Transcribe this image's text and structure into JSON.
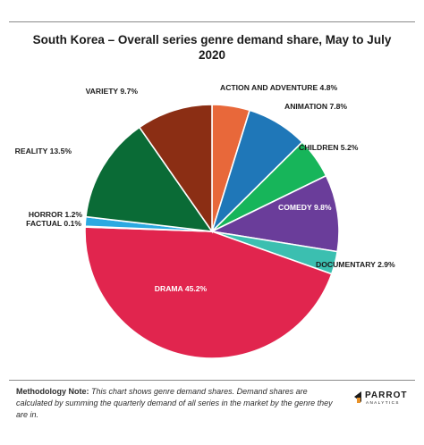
{
  "title": "South Korea – Overall series genre demand share, May to July 2020",
  "chart_data": {
    "type": "pie",
    "title": "South Korea – Overall series genre demand share, May to July 2020",
    "slices": [
      {
        "name": "ACTION AND ADVENTURE",
        "value": 4.8,
        "label": "ACTION AND ADVENTURE 4.8%",
        "color": "#e8683a",
        "label_side": "outside"
      },
      {
        "name": "ANIMATION",
        "value": 7.8,
        "label": "ANIMATION 7.8%",
        "color": "#1f77b8",
        "label_side": "outside"
      },
      {
        "name": "CHILDREN",
        "value": 5.2,
        "label": "CHILDREN 5.2%",
        "color": "#17b55a",
        "label_side": "outside"
      },
      {
        "name": "COMEDY",
        "value": 9.8,
        "label": "COMEDY 9.8%",
        "color": "#6a3d9a",
        "label_side": "inside"
      },
      {
        "name": "DOCUMENTARY",
        "value": 2.9,
        "label": "DOCUMENTARY 2.9%",
        "color": "#3bbfb0",
        "label_side": "outside"
      },
      {
        "name": "DRAMA",
        "value": 45.2,
        "label": "DRAMA 45.2%",
        "color": "#e1254e",
        "label_side": "inside"
      },
      {
        "name": "FACTUAL",
        "value": 0.1,
        "label": "FACTUAL 0.1%",
        "color": "#e8922a",
        "label_side": "outside"
      },
      {
        "name": "HORROR",
        "value": 1.2,
        "label": "HORROR 1.2%",
        "color": "#2ca9e1",
        "label_side": "outside"
      },
      {
        "name": "REALITY",
        "value": 13.5,
        "label": "REALITY 13.5%",
        "color": "#0a6b36",
        "label_side": "outside"
      },
      {
        "name": "VARIETY",
        "value": 9.7,
        "label": "VARIETY 9.7%",
        "color": "#8b2e14",
        "label_side": "outside"
      }
    ],
    "start_angle_deg": 0,
    "direction": "clockwise",
    "legend": "none"
  },
  "footnote": {
    "label": "Methodology Note:",
    "text": " This chart shows genre demand shares. Demand shares are calculated by summing the quarterly demand of all series in the market by the genre they are in."
  },
  "logo": {
    "name": "PARROT",
    "sub": "ANALYTICS"
  }
}
